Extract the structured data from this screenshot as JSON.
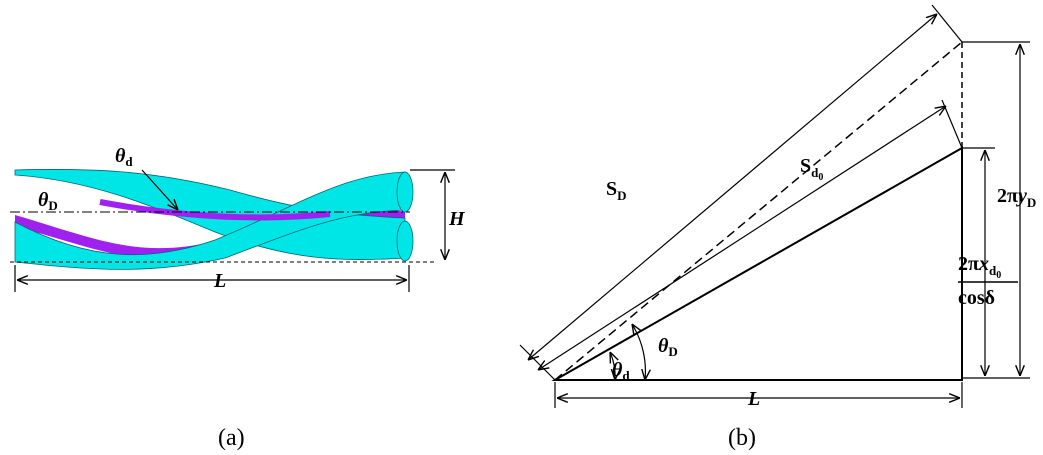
{
  "panel_a": {
    "theta_d": {
      "symbol": "θ",
      "subscript": "d"
    },
    "theta_D": {
      "symbol": "θ",
      "subscript": "D"
    },
    "height": "H",
    "length": "L",
    "caption": "(a)"
  },
  "panel_b": {
    "s_D": {
      "symbol": "S",
      "subscript": "D"
    },
    "s_d0": {
      "symbol": "S",
      "subscript": "d",
      "subsubscript": "0"
    },
    "y_label": {
      "prefix": "2π",
      "symbol": "y",
      "subscript": "D"
    },
    "x_label": {
      "prefix": "2π",
      "symbol": "x",
      "subscript": "d",
      "subsubscript": "0",
      "denominator": "cosδ"
    },
    "theta_d": {
      "symbol": "θ",
      "subscript": "d"
    },
    "theta_D": {
      "symbol": "θ",
      "subscript": "D"
    },
    "length": "L",
    "caption": "(b)"
  }
}
